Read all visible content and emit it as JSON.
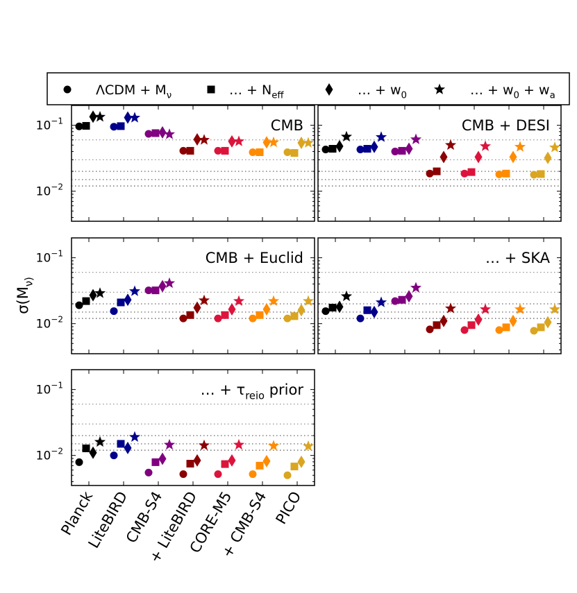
{
  "chart_data": {
    "type": "scatter",
    "y_axis": {
      "label": "σ(M_ν)",
      "scale": "log",
      "range": [
        0.0035,
        0.2
      ],
      "ticks": [
        {
          "value": 0.1,
          "base": "10",
          "exp": "−1"
        },
        {
          "value": 0.01,
          "base": "10",
          "exp": "−2"
        }
      ]
    },
    "x_categories": [
      "Planck",
      "LiteBIRD",
      "CMB-S4",
      "+ LiteBIRD",
      "CORE-M5",
      "+ CMB-S4",
      "PICO"
    ],
    "colors": [
      "#000000",
      "#00008b",
      "#800080",
      "#8b0000",
      "#dc143c",
      "#ff8c00",
      "#daa520"
    ],
    "models": [
      {
        "label": "ΛCDM + M_ν",
        "marker": "circle"
      },
      {
        "label": "… + N_eff",
        "marker": "square"
      },
      {
        "label": "… + w_0",
        "marker": "diamond"
      },
      {
        "label": "… + w_0 + w_a",
        "marker": "star"
      }
    ],
    "reference_lines": [
      0.06,
      0.03,
      0.02,
      0.015,
      0.012
    ],
    "panels": [
      {
        "title": "CMB",
        "values": [
          [
            0.096,
            0.098,
            0.135,
            0.134
          ],
          [
            0.095,
            0.097,
            0.131,
            0.13
          ],
          [
            0.074,
            0.076,
            0.078,
            0.073
          ],
          [
            0.041,
            0.041,
            0.061,
            0.06
          ],
          [
            0.041,
            0.041,
            0.057,
            0.057
          ],
          [
            0.039,
            0.039,
            0.055,
            0.055
          ],
          [
            0.039,
            0.038,
            0.054,
            0.054
          ]
        ]
      },
      {
        "title": "CMB + DESI",
        "values": [
          [
            0.043,
            0.044,
            0.048,
            0.067
          ],
          [
            0.043,
            0.044,
            0.047,
            0.066
          ],
          [
            0.04,
            0.041,
            0.044,
            0.061
          ],
          [
            0.0185,
            0.02,
            0.033,
            0.05
          ],
          [
            0.0185,
            0.0195,
            0.033,
            0.048
          ],
          [
            0.018,
            0.0185,
            0.033,
            0.047
          ],
          [
            0.0178,
            0.0182,
            0.032,
            0.046
          ]
        ]
      },
      {
        "title": "CMB + Euclid",
        "values": [
          [
            0.019,
            0.022,
            0.027,
            0.029
          ],
          [
            0.0155,
            0.021,
            0.023,
            0.031
          ],
          [
            0.032,
            0.032,
            0.037,
            0.041
          ],
          [
            0.012,
            0.0135,
            0.0175,
            0.0225
          ],
          [
            0.012,
            0.0135,
            0.0165,
            0.022
          ],
          [
            0.012,
            0.0135,
            0.0165,
            0.022
          ],
          [
            0.012,
            0.013,
            0.016,
            0.022
          ]
        ]
      },
      {
        "title": "… + SKA",
        "values": [
          [
            0.0155,
            0.0175,
            0.018,
            0.026
          ],
          [
            0.012,
            0.016,
            0.015,
            0.021
          ],
          [
            0.022,
            0.023,
            0.026,
            0.035
          ],
          [
            0.0082,
            0.0095,
            0.011,
            0.017
          ],
          [
            0.008,
            0.0095,
            0.0115,
            0.0165
          ],
          [
            0.008,
            0.0088,
            0.011,
            0.0165
          ],
          [
            0.0078,
            0.0088,
            0.0105,
            0.0165
          ]
        ]
      },
      {
        "title": "… + τ_reio prior",
        "values": [
          [
            0.0079,
            0.0128,
            0.011,
            0.016
          ],
          [
            0.01,
            0.015,
            0.013,
            0.019
          ],
          [
            0.0055,
            0.0079,
            0.0089,
            0.0145
          ],
          [
            0.0052,
            0.0075,
            0.0084,
            0.0142
          ],
          [
            0.0052,
            0.0074,
            0.0084,
            0.0145
          ],
          [
            0.0052,
            0.007,
            0.0082,
            0.014
          ],
          [
            0.005,
            0.0068,
            0.008,
            0.0138
          ]
        ]
      }
    ]
  }
}
